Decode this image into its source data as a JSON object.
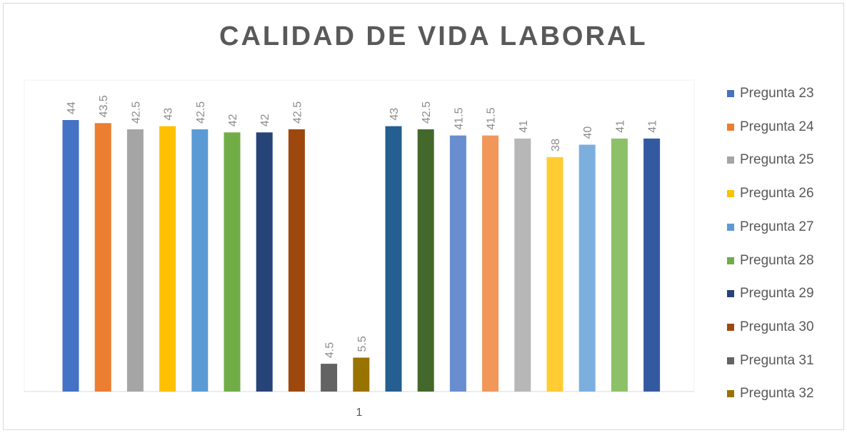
{
  "chart_data": {
    "type": "bar",
    "title": "CALIDAD DE VIDA LABORAL",
    "categories": [
      "1"
    ],
    "series": [
      {
        "name": "Pregunta 23",
        "values": [
          44
        ],
        "label": "44",
        "color": "#4472c4"
      },
      {
        "name": "Pregunta 24",
        "values": [
          43.5
        ],
        "label": "43.5",
        "color": "#ed7d31"
      },
      {
        "name": "Pregunta 25",
        "values": [
          42.5
        ],
        "label": "42.5",
        "color": "#a5a5a5"
      },
      {
        "name": "Pregunta 26",
        "values": [
          43
        ],
        "label": "43",
        "color": "#ffc000"
      },
      {
        "name": "Pregunta 27",
        "values": [
          42.5
        ],
        "label": "42.5",
        "color": "#5b9bd5"
      },
      {
        "name": "Pregunta 28",
        "values": [
          42
        ],
        "label": "42",
        "color": "#70ad47"
      },
      {
        "name": "Pregunta 29",
        "values": [
          42
        ],
        "label": "42",
        "color": "#264478"
      },
      {
        "name": "Pregunta 30",
        "values": [
          42.5
        ],
        "label": "42.5",
        "color": "#9e480e"
      },
      {
        "name": "Pregunta 31",
        "values": [
          4.5
        ],
        "label": "4.5",
        "color": "#636363"
      },
      {
        "name": "Pregunta 32",
        "values": [
          5.5
        ],
        "label": "5.5",
        "color": "#997300"
      },
      {
        "name": "",
        "values": [
          43
        ],
        "label": "43",
        "color": "#255e91"
      },
      {
        "name": "",
        "values": [
          42.5
        ],
        "label": "42.5",
        "color": "#43682b"
      },
      {
        "name": "",
        "values": [
          41.5
        ],
        "label": "41.5",
        "color": "#698ed0"
      },
      {
        "name": "",
        "values": [
          41.5
        ],
        "label": "41.5",
        "color": "#f1975a"
      },
      {
        "name": "",
        "values": [
          41
        ],
        "label": "41",
        "color": "#b7b7b7"
      },
      {
        "name": "",
        "values": [
          38
        ],
        "label": "38",
        "color": "#ffcd33"
      },
      {
        "name": "",
        "values": [
          40
        ],
        "label": "40",
        "color": "#7cafdd"
      },
      {
        "name": "",
        "values": [
          41
        ],
        "label": "41",
        "color": "#8cc168"
      },
      {
        "name": "",
        "values": [
          41
        ],
        "label": "41",
        "color": "#335aa1"
      }
    ],
    "ylim": [
      0,
      44
    ],
    "legend": "right",
    "grid": false,
    "xlabel": "",
    "ylabel": ""
  }
}
